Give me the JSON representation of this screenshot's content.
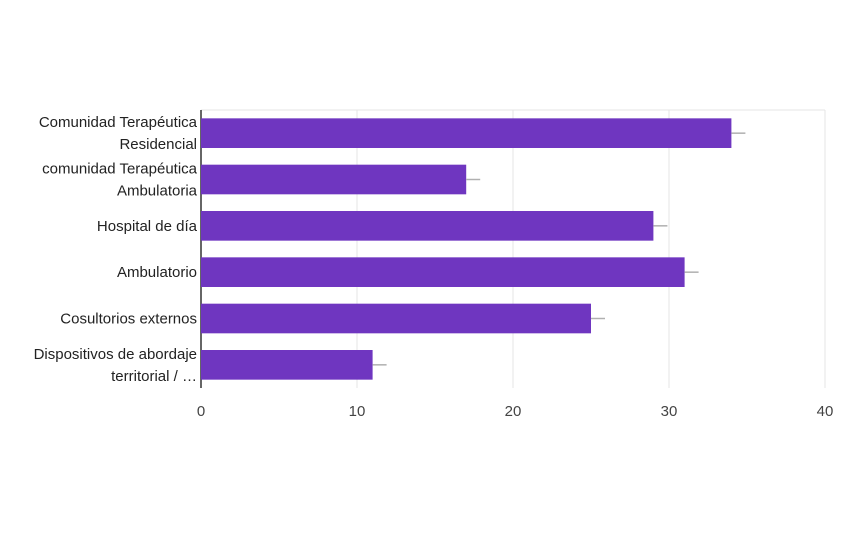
{
  "chart_data": {
    "type": "bar",
    "orientation": "horizontal",
    "categories": [
      [
        "Comunidad Terapéutica",
        "Residencial"
      ],
      [
        "comunidad Terapéutica",
        "Ambulatoria"
      ],
      [
        "Hospital de día"
      ],
      [
        "Ambulatorio"
      ],
      [
        "Cosultorios externos"
      ],
      [
        "Dispositivos de abordaje",
        "territorial / …"
      ]
    ],
    "values": [
      34,
      17,
      29,
      31,
      25,
      11
    ],
    "xlim": [
      0,
      40
    ],
    "xticks": [
      0,
      10,
      20,
      30,
      40
    ],
    "title": "",
    "xlabel": "",
    "ylabel": "",
    "grid": true,
    "legend": "none",
    "bar_color": "#6f36c0",
    "grid_color": "#e4e4e4",
    "axis_color": "#333333",
    "error_bar_color": "#b0b0b0"
  }
}
